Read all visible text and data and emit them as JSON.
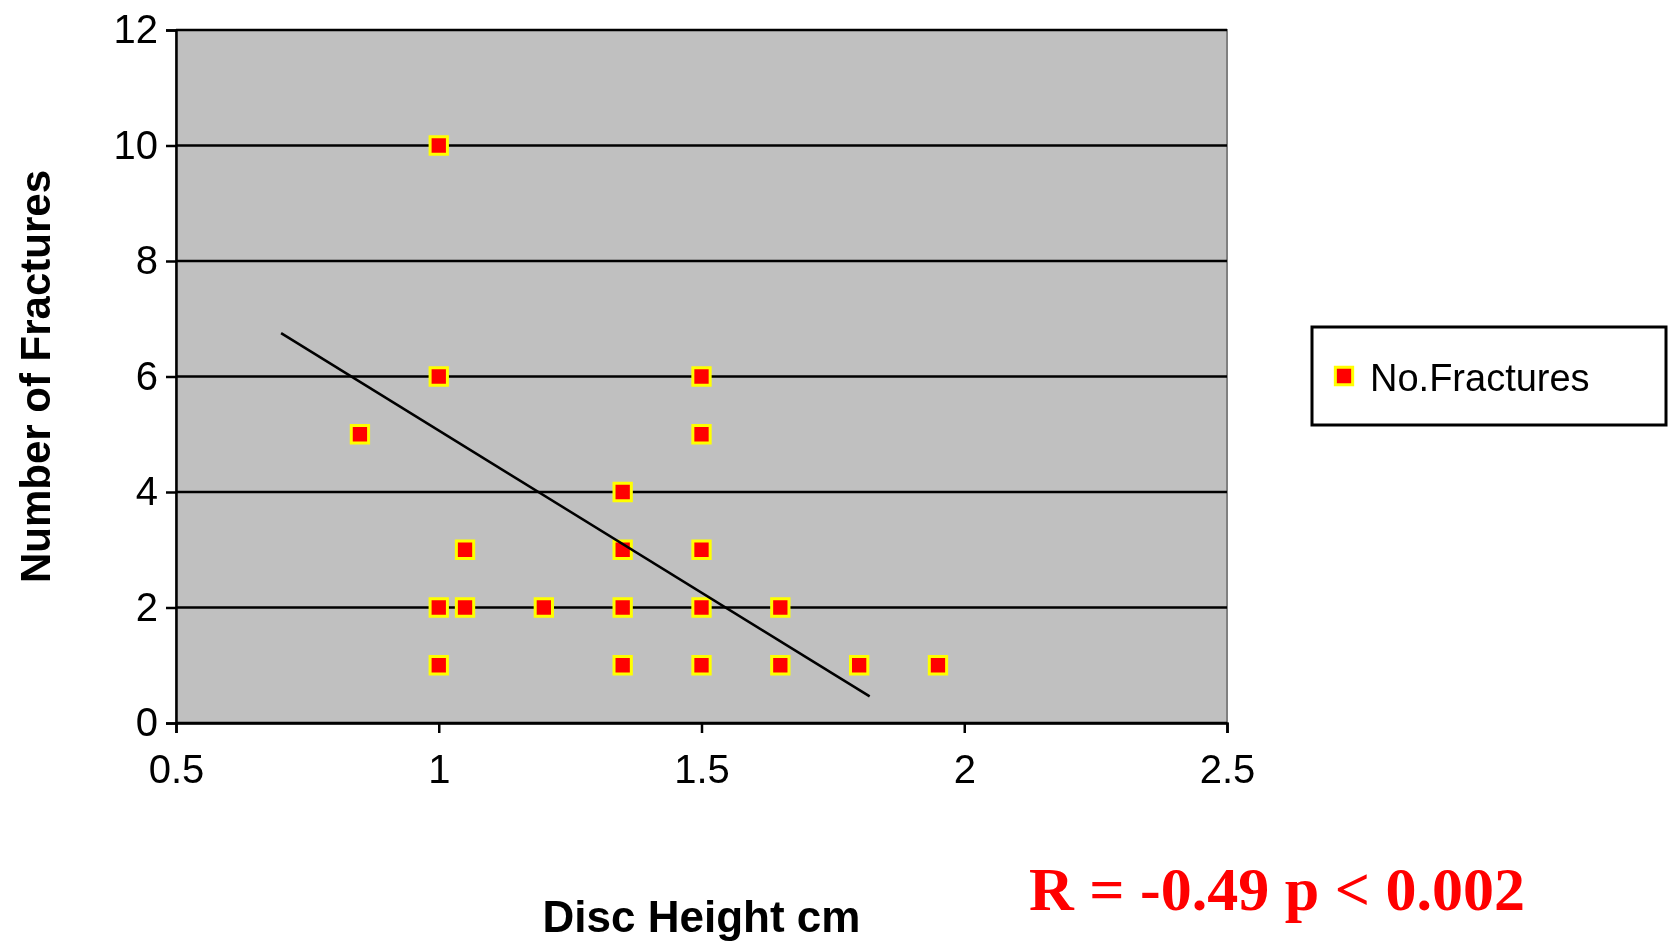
{
  "chart_data": {
    "type": "scatter",
    "xlabel": "Disc Height cm",
    "ylabel": "Number of Fractures",
    "xlim": [
      0.5,
      2.5
    ],
    "xticks": [
      0.5,
      1,
      1.5,
      2,
      2.5
    ],
    "ylim": [
      0,
      12
    ],
    "yticks": [
      0,
      2,
      4,
      6,
      8,
      10,
      12
    ],
    "grid": "y",
    "legend": "right",
    "marker": "square",
    "series": [
      {
        "name": "No.Fractures",
        "color": "#ff0000",
        "x": [
          0.85,
          1,
          1,
          1,
          1,
          1.05,
          1.05,
          1.2,
          1.35,
          1.35,
          1.35,
          1.35,
          1.5,
          1.5,
          1.5,
          1.5,
          1.5,
          1.65,
          1.65,
          1.8,
          1.95
        ],
        "values": [
          5,
          10,
          6,
          2,
          1,
          3,
          2,
          2,
          4,
          3,
          2,
          1,
          6,
          5,
          3,
          2,
          1,
          2,
          1,
          1,
          1
        ]
      },
      {
        "type": "line",
        "marker": "none",
        "color": "#000000",
        "x": [
          0.7,
          1.82
        ],
        "values": [
          6.75,
          0.46
        ]
      }
    ],
    "annotations": [
      "R = -0.49 p < 0.002"
    ]
  }
}
